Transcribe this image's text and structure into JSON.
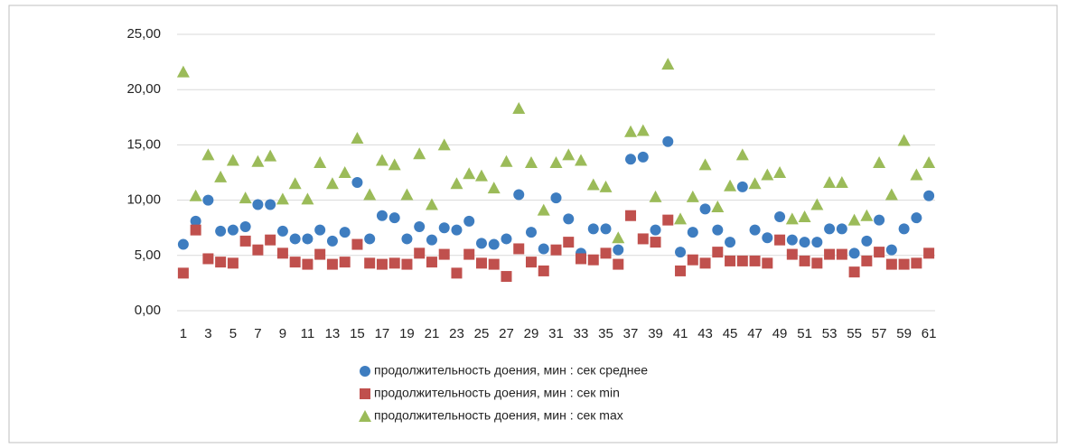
{
  "chart_data": {
    "type": "scatter",
    "x": [
      1,
      2,
      3,
      4,
      5,
      6,
      7,
      8,
      9,
      10,
      11,
      12,
      13,
      14,
      15,
      16,
      17,
      18,
      19,
      20,
      21,
      22,
      23,
      24,
      25,
      26,
      27,
      28,
      29,
      30,
      31,
      32,
      33,
      34,
      35,
      36,
      37,
      38,
      39,
      40,
      41,
      42,
      43,
      44,
      45,
      46,
      47,
      48,
      49,
      50,
      51,
      52,
      53,
      54,
      55,
      56,
      57,
      58,
      59,
      60,
      61
    ],
    "xlim": [
      0.5,
      61.5
    ],
    "xticks": [
      1,
      3,
      5,
      7,
      9,
      11,
      13,
      15,
      17,
      19,
      21,
      23,
      25,
      27,
      29,
      31,
      33,
      35,
      37,
      39,
      41,
      43,
      45,
      47,
      49,
      51,
      53,
      55,
      57,
      59,
      61
    ],
    "ylim": [
      0,
      25
    ],
    "yticks": [
      {
        "value": 0,
        "label": "0,00"
      },
      {
        "value": 5,
        "label": "5,00"
      },
      {
        "value": 10,
        "label": "10,00"
      },
      {
        "value": 15,
        "label": "15,00"
      },
      {
        "value": 20,
        "label": "20,00"
      },
      {
        "value": 25,
        "label": "25,00"
      }
    ],
    "grid": true,
    "legend": "bottom",
    "series": [
      {
        "name": "продолжительность доения, мин : сек среднее",
        "color": "#3e7dc0",
        "marker": "circle",
        "values": [
          6.0,
          8.1,
          10.0,
          7.2,
          7.3,
          7.6,
          9.6,
          9.6,
          7.2,
          6.5,
          6.5,
          7.3,
          6.3,
          7.1,
          11.6,
          6.5,
          8.6,
          8.4,
          6.5,
          7.6,
          6.4,
          7.5,
          7.3,
          8.1,
          6.1,
          6.0,
          6.5,
          10.5,
          7.1,
          5.6,
          10.2,
          8.3,
          5.2,
          7.4,
          7.4,
          5.5,
          13.7,
          13.9,
          7.3,
          15.3,
          5.3,
          7.1,
          9.2,
          7.3,
          6.2,
          11.2,
          7.3,
          6.6,
          8.5,
          6.4,
          6.2,
          6.2,
          7.4,
          7.4,
          5.2,
          6.3,
          8.2,
          5.5,
          7.4,
          8.4,
          10.4
        ]
      },
      {
        "name": "продолжительность доения, мин : сек min",
        "color": "#c0504d",
        "marker": "square",
        "values": [
          3.4,
          7.3,
          4.7,
          4.4,
          4.3,
          6.3,
          5.5,
          6.4,
          5.2,
          4.4,
          4.2,
          5.1,
          4.2,
          4.4,
          6.0,
          4.3,
          4.2,
          4.3,
          4.2,
          5.2,
          4.4,
          5.1,
          3.4,
          5.1,
          4.3,
          4.2,
          3.1,
          5.6,
          4.4,
          3.6,
          5.5,
          6.2,
          4.7,
          4.6,
          5.2,
          4.2,
          8.6,
          6.5,
          6.2,
          8.2,
          3.6,
          4.6,
          4.3,
          5.3,
          4.5,
          4.5,
          4.5,
          4.3,
          6.4,
          5.1,
          4.5,
          4.3,
          5.1,
          5.1,
          3.5,
          4.5,
          5.3,
          4.2,
          4.2,
          4.3,
          5.2
        ]
      },
      {
        "name": "продолжительность доения, мин : сек max",
        "color": "#9bbb59",
        "marker": "triangle",
        "values": [
          21.6,
          10.4,
          14.1,
          12.1,
          13.6,
          10.2,
          13.5,
          14.0,
          10.1,
          11.5,
          10.1,
          13.4,
          11.5,
          12.5,
          15.6,
          10.5,
          13.6,
          13.2,
          10.5,
          14.2,
          9.6,
          15.0,
          11.5,
          12.4,
          12.2,
          11.1,
          13.5,
          18.3,
          13.4,
          9.1,
          13.4,
          14.1,
          13.6,
          11.4,
          11.2,
          6.6,
          16.2,
          16.3,
          10.3,
          22.3,
          8.3,
          10.3,
          13.2,
          9.4,
          11.3,
          14.1,
          11.5,
          12.3,
          12.5,
          8.3,
          8.5,
          9.6,
          11.6,
          11.6,
          8.2,
          8.6,
          13.4,
          10.5,
          15.4,
          12.3,
          13.4
        ]
      }
    ]
  }
}
